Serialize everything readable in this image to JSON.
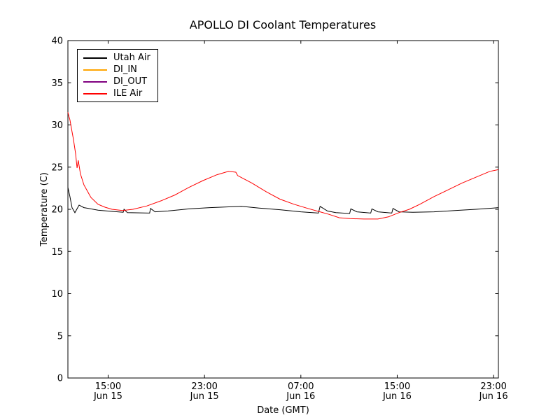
{
  "title": "APOLLO DI Coolant Temperatures",
  "chart_data": {
    "type": "line",
    "title": "APOLLO DI Coolant Temperatures",
    "xlabel": "Date (GMT)",
    "ylabel": "Temperature (C)",
    "ylim": [
      0,
      40
    ],
    "yticks": [
      0,
      5,
      10,
      15,
      20,
      25,
      30,
      35,
      40
    ],
    "x_unit": "hours since Jun 15 00:00 GMT",
    "xlim_hours": [
      11.66,
      47.4
    ],
    "xticks": [
      {
        "hour": 15,
        "time": "15:00",
        "date": "Jun 15"
      },
      {
        "hour": 23,
        "time": "23:00",
        "date": "Jun 15"
      },
      {
        "hour": 31,
        "time": "07:00",
        "date": "Jun 16"
      },
      {
        "hour": 39,
        "time": "15:00",
        "date": "Jun 16"
      },
      {
        "hour": 47,
        "time": "23:00",
        "date": "Jun 16"
      }
    ],
    "grid": false,
    "legend_position": "upper left",
    "series": [
      {
        "name": "Utah Air",
        "color": "#000000",
        "points": [
          [
            11.66,
            22.6
          ],
          [
            11.83,
            21.5
          ],
          [
            12.0,
            20.2
          ],
          [
            12.24,
            19.6
          ],
          [
            12.59,
            20.5
          ],
          [
            12.99,
            20.2
          ],
          [
            14.16,
            19.9
          ],
          [
            15.32,
            19.75
          ],
          [
            16.25,
            19.65
          ],
          [
            16.32,
            20.0
          ],
          [
            16.6,
            19.6
          ],
          [
            18.45,
            19.55
          ],
          [
            18.52,
            20.1
          ],
          [
            18.9,
            19.7
          ],
          [
            19.97,
            19.8
          ],
          [
            21.71,
            20.05
          ],
          [
            23.45,
            20.2
          ],
          [
            25.2,
            20.3
          ],
          [
            26.07,
            20.35
          ],
          [
            27.52,
            20.15
          ],
          [
            29.26,
            19.95
          ],
          [
            31.0,
            19.7
          ],
          [
            32.46,
            19.55
          ],
          [
            32.6,
            20.35
          ],
          [
            33.2,
            19.8
          ],
          [
            33.9,
            19.6
          ],
          [
            35.05,
            19.5
          ],
          [
            35.15,
            20.05
          ],
          [
            35.65,
            19.7
          ],
          [
            36.8,
            19.55
          ],
          [
            36.9,
            20.05
          ],
          [
            37.4,
            19.7
          ],
          [
            38.55,
            19.55
          ],
          [
            38.65,
            20.1
          ],
          [
            39.14,
            19.7
          ],
          [
            40.3,
            19.65
          ],
          [
            42.05,
            19.7
          ],
          [
            43.79,
            19.85
          ],
          [
            45.53,
            20.0
          ],
          [
            46.98,
            20.15
          ],
          [
            47.39,
            20.2
          ]
        ]
      },
      {
        "name": "DI_IN",
        "color": "#ffa500",
        "points": []
      },
      {
        "name": "DI_OUT",
        "color": "#800080",
        "points": []
      },
      {
        "name": "ILE Air",
        "color": "#ff0000",
        "points": [
          [
            11.66,
            31.5
          ],
          [
            11.75,
            31.0
          ],
          [
            11.83,
            30.6
          ],
          [
            12.0,
            29.2
          ],
          [
            12.12,
            28.3
          ],
          [
            12.3,
            26.6
          ],
          [
            12.42,
            24.9
          ],
          [
            12.52,
            25.8
          ],
          [
            12.7,
            24.2
          ],
          [
            12.99,
            22.9
          ],
          [
            13.57,
            21.4
          ],
          [
            14.16,
            20.6
          ],
          [
            14.74,
            20.25
          ],
          [
            15.32,
            20.0
          ],
          [
            16.19,
            19.85
          ],
          [
            17.06,
            20.0
          ],
          [
            18.22,
            20.4
          ],
          [
            19.39,
            21.0
          ],
          [
            20.55,
            21.7
          ],
          [
            21.71,
            22.6
          ],
          [
            22.87,
            23.4
          ],
          [
            24.04,
            24.1
          ],
          [
            25.0,
            24.5
          ],
          [
            25.6,
            24.4
          ],
          [
            25.75,
            24.0
          ],
          [
            26.94,
            23.1
          ],
          [
            28.1,
            22.1
          ],
          [
            29.26,
            21.2
          ],
          [
            30.43,
            20.6
          ],
          [
            31.59,
            20.1
          ],
          [
            32.46,
            19.75
          ],
          [
            33.33,
            19.4
          ],
          [
            34.2,
            19.0
          ],
          [
            35.07,
            18.9
          ],
          [
            36.23,
            18.85
          ],
          [
            37.4,
            18.85
          ],
          [
            38.27,
            19.1
          ],
          [
            39.14,
            19.6
          ],
          [
            40.01,
            20.0
          ],
          [
            40.88,
            20.6
          ],
          [
            42.05,
            21.5
          ],
          [
            43.21,
            22.3
          ],
          [
            44.37,
            23.1
          ],
          [
            45.53,
            23.8
          ],
          [
            46.69,
            24.5
          ],
          [
            47.39,
            24.7
          ]
        ]
      }
    ]
  }
}
